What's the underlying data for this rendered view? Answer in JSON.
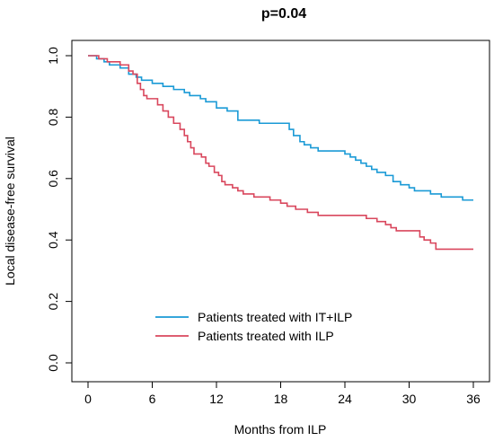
{
  "chart_data": {
    "type": "line",
    "title": "p=0.04",
    "xlabel": "Months from ILP",
    "ylabel": "Local disease-free survival",
    "xlim": [
      0,
      36
    ],
    "ylim": [
      0,
      1
    ],
    "x_ticks": [
      0,
      6,
      12,
      18,
      24,
      30,
      36
    ],
    "y_ticks": [
      0.0,
      0.2,
      0.4,
      0.6,
      0.8,
      1.0
    ],
    "x_tick_labels": [
      "0",
      "6",
      "12",
      "18",
      "24",
      "30",
      "36"
    ],
    "y_tick_labels": [
      "0.0",
      "0.2",
      "0.4",
      "0.6",
      "0.8",
      "1.0"
    ],
    "grid": false,
    "legend_position": "bottom-center",
    "series": [
      {
        "name": "Patients treated with IT+ILP",
        "color": "#1a9ad6",
        "step": true,
        "points": [
          [
            0,
            1.0
          ],
          [
            0.8,
            0.99
          ],
          [
            1.5,
            0.98
          ],
          [
            2.0,
            0.97
          ],
          [
            3.0,
            0.96
          ],
          [
            3.8,
            0.94
          ],
          [
            4.5,
            0.93
          ],
          [
            5.0,
            0.92
          ],
          [
            6.0,
            0.91
          ],
          [
            7.0,
            0.9
          ],
          [
            8.0,
            0.89
          ],
          [
            9.0,
            0.88
          ],
          [
            9.5,
            0.87
          ],
          [
            10.5,
            0.86
          ],
          [
            11.0,
            0.85
          ],
          [
            12.0,
            0.83
          ],
          [
            13.0,
            0.82
          ],
          [
            14.0,
            0.79
          ],
          [
            16.0,
            0.78
          ],
          [
            18.0,
            0.78
          ],
          [
            18.8,
            0.76
          ],
          [
            19.2,
            0.74
          ],
          [
            19.8,
            0.72
          ],
          [
            20.2,
            0.71
          ],
          [
            20.8,
            0.7
          ],
          [
            21.5,
            0.69
          ],
          [
            24.0,
            0.68
          ],
          [
            24.5,
            0.67
          ],
          [
            25.0,
            0.66
          ],
          [
            25.5,
            0.65
          ],
          [
            26.0,
            0.64
          ],
          [
            26.5,
            0.63
          ],
          [
            27.0,
            0.62
          ],
          [
            27.8,
            0.61
          ],
          [
            28.5,
            0.59
          ],
          [
            29.2,
            0.58
          ],
          [
            30.0,
            0.57
          ],
          [
            30.5,
            0.56
          ],
          [
            32.0,
            0.55
          ],
          [
            33.0,
            0.54
          ],
          [
            35.0,
            0.53
          ],
          [
            36.0,
            0.53
          ]
        ]
      },
      {
        "name": "Patients treated with ILP",
        "color": "#d9475d",
        "step": true,
        "points": [
          [
            0,
            1.0
          ],
          [
            1.0,
            0.99
          ],
          [
            1.8,
            0.98
          ],
          [
            3.0,
            0.97
          ],
          [
            3.8,
            0.95
          ],
          [
            4.2,
            0.94
          ],
          [
            4.6,
            0.91
          ],
          [
            4.9,
            0.89
          ],
          [
            5.2,
            0.87
          ],
          [
            5.5,
            0.86
          ],
          [
            6.5,
            0.84
          ],
          [
            7.0,
            0.82
          ],
          [
            7.5,
            0.8
          ],
          [
            8.0,
            0.78
          ],
          [
            8.6,
            0.76
          ],
          [
            9.0,
            0.74
          ],
          [
            9.3,
            0.72
          ],
          [
            9.6,
            0.7
          ],
          [
            9.9,
            0.68
          ],
          [
            10.6,
            0.67
          ],
          [
            11.0,
            0.65
          ],
          [
            11.3,
            0.64
          ],
          [
            11.8,
            0.62
          ],
          [
            12.2,
            0.61
          ],
          [
            12.5,
            0.59
          ],
          [
            12.8,
            0.58
          ],
          [
            13.5,
            0.57
          ],
          [
            14.0,
            0.56
          ],
          [
            14.5,
            0.55
          ],
          [
            15.5,
            0.54
          ],
          [
            17.0,
            0.53
          ],
          [
            18.0,
            0.52
          ],
          [
            18.6,
            0.51
          ],
          [
            19.4,
            0.5
          ],
          [
            20.5,
            0.49
          ],
          [
            21.5,
            0.48
          ],
          [
            25.0,
            0.48
          ],
          [
            26.0,
            0.47
          ],
          [
            27.0,
            0.46
          ],
          [
            27.8,
            0.45
          ],
          [
            28.3,
            0.44
          ],
          [
            28.8,
            0.43
          ],
          [
            29.8,
            0.43
          ],
          [
            30.8,
            0.43
          ],
          [
            31.0,
            0.41
          ],
          [
            31.4,
            0.4
          ],
          [
            32.0,
            0.39
          ],
          [
            32.5,
            0.37
          ],
          [
            36.0,
            0.37
          ]
        ]
      }
    ]
  }
}
